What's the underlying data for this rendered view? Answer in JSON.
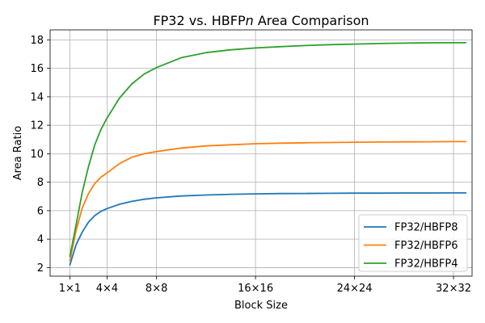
{
  "chart_data": {
    "type": "line",
    "title": "FP32 vs. HBFPn Area Comparison",
    "title_parts": [
      "FP32 vs. HBFP",
      "n",
      " Area Comparison"
    ],
    "xlabel": "Block Size",
    "ylabel": "Area Ratio",
    "xlim": [
      -0.6,
      33.5
    ],
    "ylim": [
      1.4,
      18.7
    ],
    "xticks": [
      {
        "value": 1,
        "label": "1×1"
      },
      {
        "value": 4,
        "label": "4×4"
      },
      {
        "value": 8,
        "label": "8×8"
      },
      {
        "value": 16,
        "label": "16×16"
      },
      {
        "value": 24,
        "label": "24×24"
      },
      {
        "value": 32,
        "label": "32×32"
      }
    ],
    "yticks": [
      2,
      4,
      6,
      8,
      10,
      12,
      14,
      16,
      18
    ],
    "grid": true,
    "legend_position": "lower-right",
    "series": [
      {
        "name": "FP32/HBFP8",
        "color": "#1f77b4",
        "x": [
          1,
          1.5,
          2,
          2.5,
          3,
          3.5,
          4,
          5,
          6,
          7,
          8,
          10,
          12,
          14,
          16,
          18,
          20,
          22,
          24,
          26,
          28,
          30,
          32,
          33
        ],
        "y": [
          2.2,
          3.6,
          4.5,
          5.2,
          5.65,
          5.95,
          6.15,
          6.45,
          6.65,
          6.8,
          6.9,
          7.03,
          7.1,
          7.15,
          7.18,
          7.2,
          7.21,
          7.22,
          7.23,
          7.23,
          7.24,
          7.24,
          7.25,
          7.25
        ]
      },
      {
        "name": "FP32/HBFP6",
        "color": "#ff7f0e",
        "x": [
          1,
          1.5,
          2,
          2.5,
          3,
          3.5,
          4,
          5,
          6,
          7,
          8,
          10,
          12,
          14,
          16,
          18,
          20,
          22,
          24,
          26,
          28,
          30,
          32,
          33
        ],
        "y": [
          2.5,
          4.6,
          6.2,
          7.2,
          7.9,
          8.35,
          8.65,
          9.3,
          9.75,
          10.0,
          10.15,
          10.4,
          10.55,
          10.63,
          10.7,
          10.74,
          10.77,
          10.79,
          10.81,
          10.82,
          10.83,
          10.84,
          10.85,
          10.85
        ]
      },
      {
        "name": "FP32/HBFP4",
        "color": "#2ca02c",
        "x": [
          1,
          1.5,
          2,
          2.5,
          3,
          3.5,
          4,
          5,
          6,
          7,
          8,
          10,
          12,
          14,
          16,
          18,
          20,
          22,
          24,
          26,
          28,
          30,
          32,
          33
        ],
        "y": [
          2.8,
          5.0,
          7.3,
          9.1,
          10.6,
          11.7,
          12.5,
          13.9,
          14.9,
          15.6,
          16.05,
          16.75,
          17.1,
          17.3,
          17.43,
          17.52,
          17.6,
          17.66,
          17.7,
          17.74,
          17.77,
          17.79,
          17.8,
          17.8
        ]
      }
    ]
  }
}
